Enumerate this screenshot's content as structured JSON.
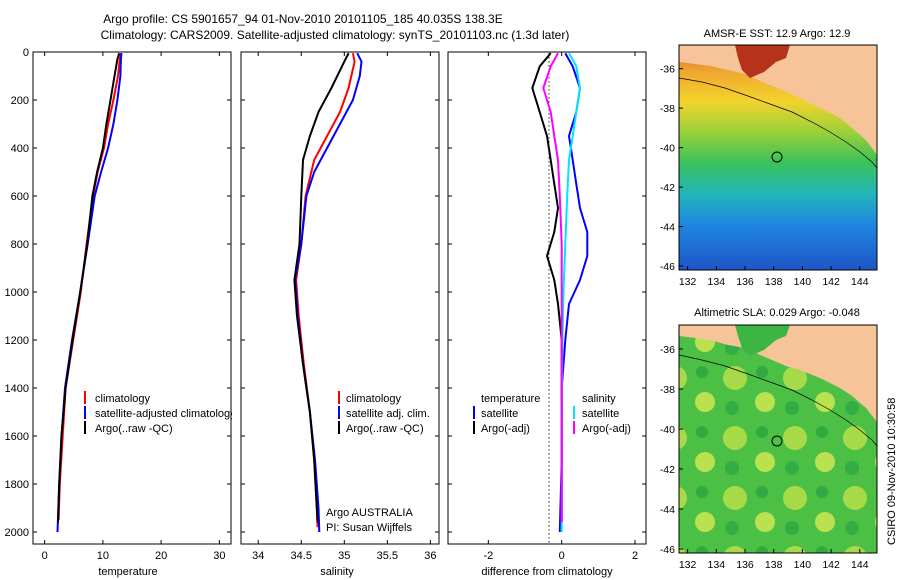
{
  "figure": {
    "title_line1": "Argo profile: CS 5901657_94 01-Nov-2010 20101105_185 40.035S 138.3E",
    "title_line2": "Climatology: CARS2009. Satellite-adjusted climatology: synTS_20101103.nc (1.3d later)",
    "side_label": "CSIRO 09-Nov-2010 10:30:58"
  },
  "colors": {
    "climatology": "#ff0000",
    "satellite": "#0000ff",
    "argo": "#000000",
    "argo_adj": "#ff00ff",
    "satellite_diff": "#00e5ff",
    "land": "#f7c49a"
  },
  "chart_data": [
    {
      "id": "temperature",
      "type": "line",
      "xlabel": "temperature",
      "x_ticks": [
        "0",
        "10",
        "20",
        "30"
      ],
      "x_tick_values": [
        0,
        10,
        20,
        30
      ],
      "xlim": [
        -2,
        32
      ],
      "ylim": [
        2050,
        0
      ],
      "y_ticks": [
        "0",
        "200",
        "400",
        "600",
        "800",
        "1000",
        "1200",
        "1400",
        "1600",
        "1800",
        "2000"
      ],
      "y_tick_values": [
        0,
        200,
        400,
        600,
        800,
        1000,
        1200,
        1400,
        1600,
        1800,
        2000
      ],
      "legend": [
        "climatology",
        "satellite-adjusted climatology",
        "Argo(..raw -QC)"
      ],
      "series": [
        {
          "name": "climatology",
          "color": "#ff0000",
          "points": [
            [
              13.1,
              5
            ],
            [
              12.9,
              30
            ],
            [
              12.6,
              100
            ],
            [
              11.8,
              200
            ],
            [
              10.9,
              300
            ],
            [
              10.2,
              400
            ],
            [
              9.1,
              500
            ],
            [
              8.3,
              600
            ],
            [
              7.2,
              800
            ],
            [
              6.2,
              1000
            ],
            [
              4.9,
              1200
            ],
            [
              3.6,
              1400
            ],
            [
              3.1,
              1600
            ],
            [
              2.6,
              1800
            ],
            [
              2.4,
              1950
            ]
          ]
        },
        {
          "name": "satellite-adjusted climatology",
          "color": "#0000ff",
          "points": [
            [
              13.2,
              5
            ],
            [
              13.1,
              30
            ],
            [
              13.0,
              100
            ],
            [
              12.5,
              200
            ],
            [
              11.8,
              300
            ],
            [
              10.9,
              400
            ],
            [
              9.7,
              500
            ],
            [
              8.6,
              600
            ],
            [
              7.4,
              800
            ],
            [
              6.1,
              1000
            ],
            [
              4.7,
              1200
            ],
            [
              3.5,
              1400
            ],
            [
              2.9,
              1600
            ],
            [
              2.5,
              1800
            ],
            [
              2.2,
              2000
            ]
          ]
        },
        {
          "name": "Argo(..raw -QC)",
          "color": "#000000",
          "points": [
            [
              12.8,
              5
            ],
            [
              12.5,
              30
            ],
            [
              12.0,
              100
            ],
            [
              11.3,
              200
            ],
            [
              10.6,
              300
            ],
            [
              10.0,
              400
            ],
            [
              9.0,
              500
            ],
            [
              8.2,
              600
            ],
            [
              7.3,
              800
            ],
            [
              6.1,
              1000
            ],
            [
              4.8,
              1200
            ],
            [
              3.6,
              1400
            ],
            [
              2.9,
              1600
            ],
            [
              2.5,
              1800
            ],
            [
              2.3,
              1960
            ]
          ]
        }
      ]
    },
    {
      "id": "salinity",
      "type": "line",
      "xlabel": "salinity",
      "x_ticks": [
        "34",
        "34.5",
        "35",
        "35.5",
        "36"
      ],
      "x_tick_values": [
        34,
        34.5,
        35,
        35.5,
        36
      ],
      "xlim": [
        33.8,
        36.1
      ],
      "ylim": [
        2050,
        0
      ],
      "legend": [
        "climatology",
        "satellite adj. clim.",
        "Argo(..raw -QC)"
      ],
      "annotation_line1": "Argo AUSTRALIA",
      "annotation_line2": "PI: Susan Wijffels",
      "series": [
        {
          "name": "climatology",
          "color": "#ff0000",
          "points": [
            [
              35.1,
              5
            ],
            [
              35.12,
              40
            ],
            [
              35.05,
              150
            ],
            [
              34.95,
              250
            ],
            [
              34.8,
              350
            ],
            [
              34.65,
              450
            ],
            [
              34.55,
              600
            ],
            [
              34.5,
              800
            ],
            [
              34.44,
              950
            ],
            [
              34.47,
              1100
            ],
            [
              34.53,
              1300
            ],
            [
              34.6,
              1500
            ],
            [
              34.65,
              1700
            ],
            [
              34.68,
              1900
            ],
            [
              34.69,
              1980
            ]
          ]
        },
        {
          "name": "satellite adj. clim.",
          "color": "#0000ff",
          "points": [
            [
              35.15,
              5
            ],
            [
              35.2,
              40
            ],
            [
              35.18,
              100
            ],
            [
              35.1,
              200
            ],
            [
              34.95,
              300
            ],
            [
              34.8,
              400
            ],
            [
              34.65,
              500
            ],
            [
              34.56,
              600
            ],
            [
              34.5,
              800
            ],
            [
              34.43,
              950
            ],
            [
              34.46,
              1100
            ],
            [
              34.52,
              1300
            ],
            [
              34.6,
              1500
            ],
            [
              34.66,
              1700
            ],
            [
              34.7,
              1900
            ],
            [
              34.71,
              2000
            ]
          ]
        },
        {
          "name": "Argo(..raw -QC)",
          "color": "#000000",
          "points": [
            [
              35.05,
              5
            ],
            [
              35.0,
              40
            ],
            [
              34.85,
              150
            ],
            [
              34.7,
              250
            ],
            [
              34.6,
              350
            ],
            [
              34.52,
              450
            ],
            [
              34.5,
              600
            ],
            [
              34.48,
              800
            ],
            [
              34.42,
              950
            ],
            [
              34.45,
              1100
            ],
            [
              34.52,
              1300
            ],
            [
              34.6,
              1500
            ],
            [
              34.65,
              1700
            ],
            [
              34.68,
              1900
            ],
            [
              34.69,
              1960
            ]
          ]
        }
      ]
    },
    {
      "id": "difference",
      "type": "line",
      "xlabel": "difference from climatology",
      "x_ticks": [
        "-2",
        "0",
        "2"
      ],
      "x_tick_values": [
        -2,
        0,
        2
      ],
      "xlim": [
        -3.1,
        2.3
      ],
      "ylim": [
        2050,
        0
      ],
      "legend_temperature_header": "temperature",
      "legend_salinity_header": "salinity",
      "legend": [
        "satellite",
        "Argo(-adj)",
        "satellite",
        "Argo(-adj)"
      ],
      "series": [
        {
          "name": "temperature satellite",
          "color": "#0000ff",
          "points": [
            [
              0.1,
              5
            ],
            [
              0.3,
              60
            ],
            [
              0.5,
              150
            ],
            [
              0.4,
              250
            ],
            [
              0.2,
              350
            ],
            [
              0.3,
              450
            ],
            [
              0.4,
              550
            ],
            [
              0.5,
              650
            ],
            [
              0.7,
              750
            ],
            [
              0.7,
              850
            ],
            [
              0.5,
              950
            ],
            [
              0.2,
              1050
            ],
            [
              0.1,
              1200
            ],
            [
              0.0,
              1400
            ],
            [
              0.0,
              1700
            ],
            [
              -0.05,
              2000
            ]
          ]
        },
        {
          "name": "temperature Argo(-adj)",
          "color": "#000000",
          "points": [
            [
              -0.3,
              5
            ],
            [
              -0.6,
              60
            ],
            [
              -0.8,
              150
            ],
            [
              -0.6,
              250
            ],
            [
              -0.4,
              350
            ],
            [
              -0.3,
              450
            ],
            [
              -0.2,
              550
            ],
            [
              -0.1,
              650
            ],
            [
              -0.2,
              750
            ],
            [
              -0.4,
              850
            ],
            [
              -0.2,
              950
            ],
            [
              -0.1,
              1050
            ],
            [
              0.0,
              1200
            ],
            [
              0.0,
              1500
            ],
            [
              0.0,
              1960
            ]
          ]
        },
        {
          "name": "salinity satellite",
          "color": "#00e5ff",
          "points": [
            [
              0.2,
              5
            ],
            [
              0.4,
              60
            ],
            [
              0.5,
              150
            ],
            [
              0.4,
              250
            ],
            [
              0.3,
              350
            ],
            [
              0.2,
              450
            ],
            [
              0.15,
              600
            ],
            [
              0.1,
              800
            ],
            [
              0.05,
              1000
            ],
            [
              0.02,
              1200
            ],
            [
              0.0,
              1500
            ],
            [
              0.0,
              2000
            ]
          ]
        },
        {
          "name": "salinity Argo(-adj)",
          "color": "#ff00ff",
          "points": [
            [
              -0.1,
              5
            ],
            [
              -0.3,
              60
            ],
            [
              -0.5,
              150
            ],
            [
              -0.3,
              250
            ],
            [
              -0.2,
              350
            ],
            [
              -0.1,
              450
            ],
            [
              -0.05,
              600
            ],
            [
              0.0,
              800
            ],
            [
              0.0,
              1000
            ],
            [
              0.0,
              1200
            ],
            [
              0.0,
              1500
            ],
            [
              0.0,
              1960
            ]
          ]
        }
      ]
    }
  ],
  "maps": [
    {
      "id": "sst",
      "title": "AMSR-E SST: 12.9 Argo: 12.9",
      "y_ticks": [
        "-36",
        "-38",
        "-40",
        "-42",
        "-44",
        "-46"
      ],
      "y_tick_values": [
        -36,
        -38,
        -40,
        -42,
        -44,
        -46
      ],
      "x_ticks": [
        "132",
        "134",
        "136",
        "138",
        "140",
        "142",
        "144"
      ],
      "x_tick_values": [
        132,
        134,
        136,
        138,
        140,
        142,
        144
      ],
      "float_lon": 138.3,
      "float_lat": -40.035
    },
    {
      "id": "sla",
      "title": "Altimetric SLA: 0.029 Argo: -0.048",
      "y_ticks": [
        "-36",
        "-38",
        "-40",
        "-42",
        "-44",
        "-46"
      ],
      "y_tick_values": [
        -36,
        -38,
        -40,
        -42,
        -44,
        -46
      ],
      "x_ticks": [
        "132",
        "134",
        "136",
        "138",
        "140",
        "142",
        "144"
      ],
      "x_tick_values": [
        132,
        134,
        136,
        138,
        140,
        142,
        144
      ],
      "float_lon": 138.3,
      "float_lat": -40.035
    }
  ]
}
